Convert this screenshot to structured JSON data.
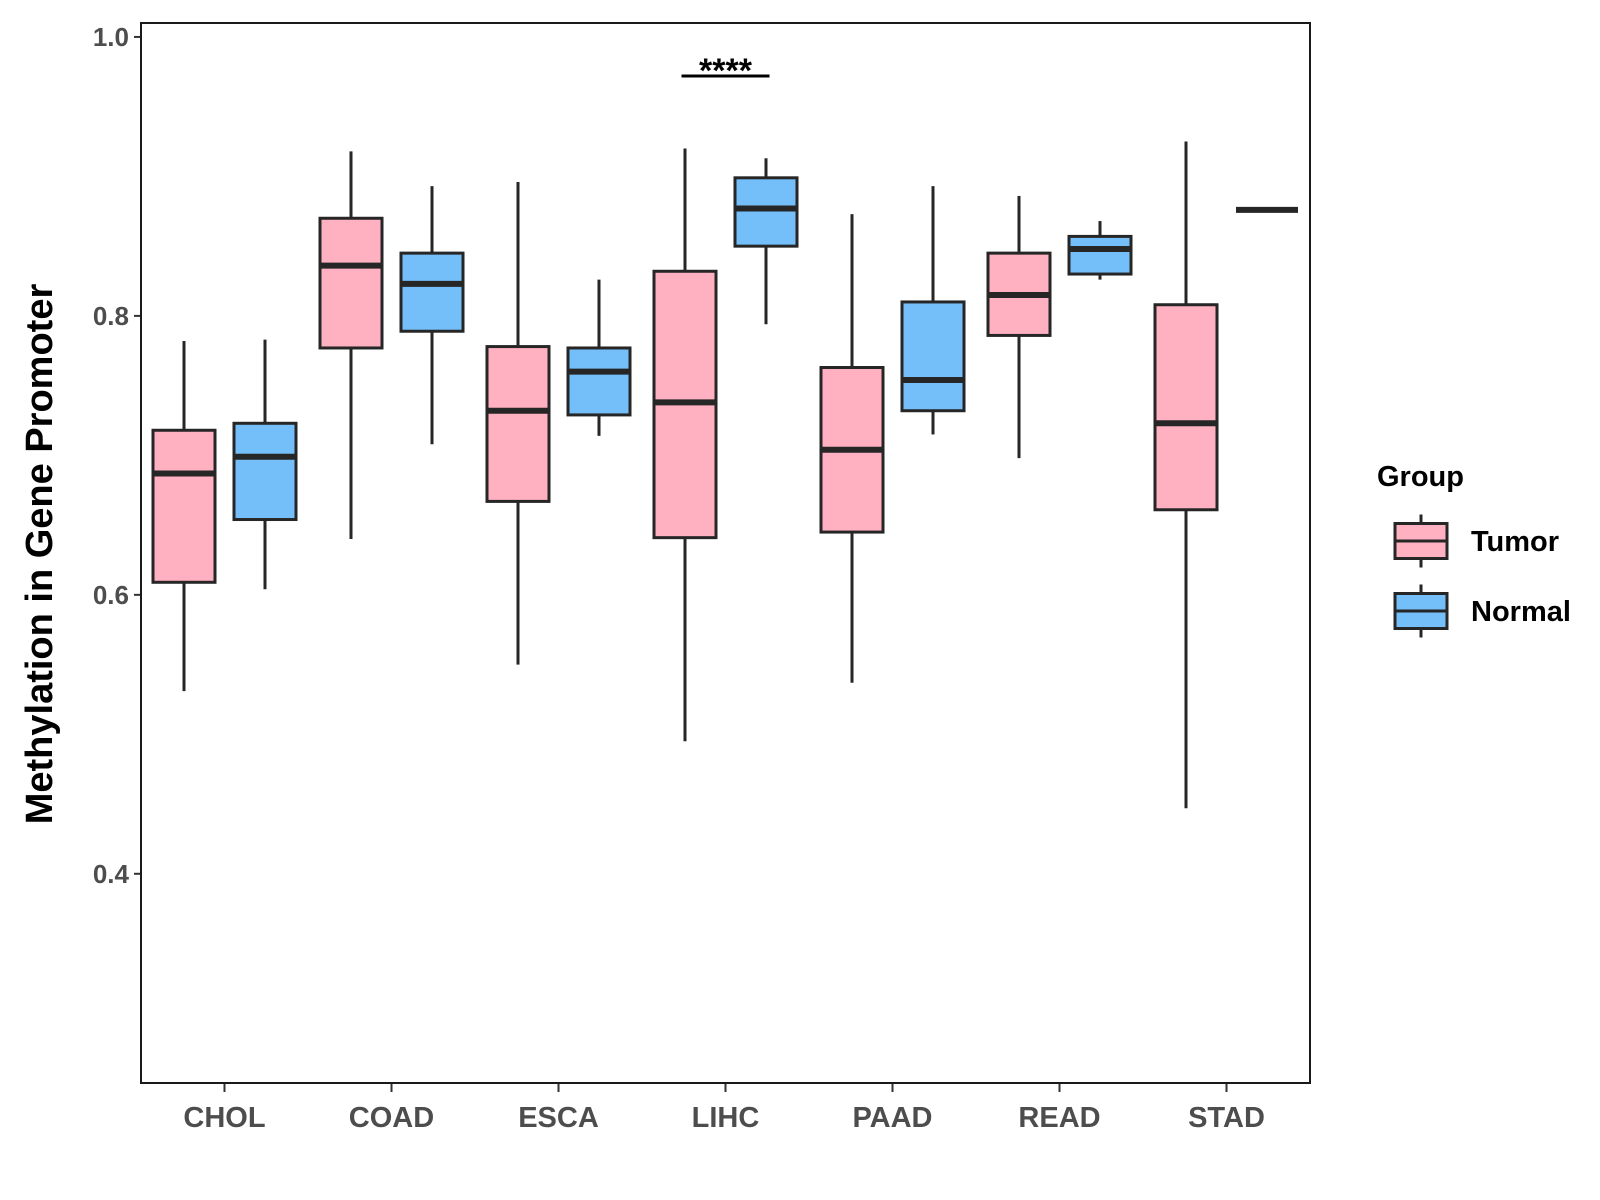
{
  "chart_data": {
    "type": "boxplot",
    "title": "",
    "xlabel": "",
    "ylabel": "Methylation in Gene Promoter",
    "ylim": [
      0.25,
      1.01
    ],
    "yticks": [
      0.4,
      0.6,
      0.8,
      1.0
    ],
    "ytick_labels": [
      "0.4",
      "0.6",
      "0.8",
      "1.0"
    ],
    "categories": [
      "CHOL",
      "COAD",
      "ESCA",
      "LIHC",
      "PAAD",
      "READ",
      "STAD"
    ],
    "legend": {
      "title": "Group",
      "position": "right",
      "entries": [
        {
          "name": "Tumor",
          "color": "#FFB0C1"
        },
        {
          "name": "Normal",
          "color": "#74BEF9"
        }
      ]
    },
    "series": [
      {
        "name": "Tumor",
        "color": "#FFB0C1",
        "boxes": [
          {
            "category": "CHOL",
            "whisker_low": 0.531,
            "q1": 0.609,
            "median": 0.687,
            "q3": 0.718,
            "whisker_high": 0.782
          },
          {
            "category": "COAD",
            "whisker_low": 0.64,
            "q1": 0.777,
            "median": 0.836,
            "q3": 0.87,
            "whisker_high": 0.918
          },
          {
            "category": "ESCA",
            "whisker_low": 0.55,
            "q1": 0.667,
            "median": 0.732,
            "q3": 0.778,
            "whisker_high": 0.896
          },
          {
            "category": "LIHC",
            "whisker_low": 0.495,
            "q1": 0.641,
            "median": 0.738,
            "q3": 0.832,
            "whisker_high": 0.92
          },
          {
            "category": "PAAD",
            "whisker_low": 0.537,
            "q1": 0.645,
            "median": 0.704,
            "q3": 0.763,
            "whisker_high": 0.873
          },
          {
            "category": "READ",
            "whisker_low": 0.698,
            "q1": 0.786,
            "median": 0.815,
            "q3": 0.845,
            "whisker_high": 0.886
          },
          {
            "category": "STAD",
            "whisker_low": 0.447,
            "q1": 0.661,
            "median": 0.723,
            "q3": 0.808,
            "whisker_high": 0.925
          }
        ]
      },
      {
        "name": "Normal",
        "color": "#74BEF9",
        "boxes": [
          {
            "category": "CHOL",
            "whisker_low": 0.604,
            "q1": 0.654,
            "median": 0.699,
            "q3": 0.723,
            "whisker_high": 0.783
          },
          {
            "category": "COAD",
            "whisker_low": 0.708,
            "q1": 0.789,
            "median": 0.823,
            "q3": 0.845,
            "whisker_high": 0.893
          },
          {
            "category": "ESCA",
            "whisker_low": 0.714,
            "q1": 0.729,
            "median": 0.76,
            "q3": 0.777,
            "whisker_high": 0.826
          },
          {
            "category": "LIHC",
            "whisker_low": 0.794,
            "q1": 0.85,
            "median": 0.877,
            "q3": 0.899,
            "whisker_high": 0.913
          },
          {
            "category": "PAAD",
            "whisker_low": 0.715,
            "q1": 0.732,
            "median": 0.754,
            "q3": 0.81,
            "whisker_high": 0.893
          },
          {
            "category": "READ",
            "whisker_low": 0.826,
            "q1": 0.83,
            "median": 0.848,
            "q3": 0.857,
            "whisker_high": 0.868
          },
          {
            "category": "STAD",
            "whisker_low": 0.876,
            "q1": 0.876,
            "median": 0.876,
            "q3": 0.876,
            "whisker_high": 0.876
          }
        ]
      }
    ],
    "annotations": [
      {
        "category": "LIHC",
        "text": "****",
        "y": 0.972
      }
    ]
  }
}
